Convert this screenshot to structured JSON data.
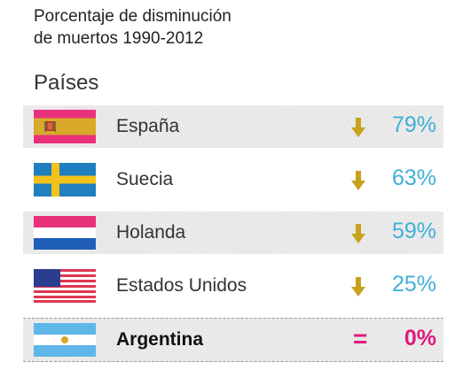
{
  "header": {
    "title_line1": "Porcentaje de disminución",
    "title_line2": "de muertos 1990-2012",
    "column_label": "Países"
  },
  "colors": {
    "decrease_value": "#3fb0d8",
    "decrease_arrow": "#c8a21e",
    "highlight": "#e0197d",
    "stripe": "#e4e4e4"
  },
  "rows": [
    {
      "country": "España",
      "value": "79%",
      "indicator": "down-arrow",
      "flag": "spain-flag-icon"
    },
    {
      "country": "Suecia",
      "value": "63%",
      "indicator": "down-arrow",
      "flag": "sweden-flag-icon"
    },
    {
      "country": "Holanda",
      "value": "59%",
      "indicator": "down-arrow",
      "flag": "netherlands-flag-icon"
    },
    {
      "country": "Estados Unidos",
      "value": "25%",
      "indicator": "down-arrow",
      "flag": "usa-flag-icon"
    },
    {
      "country": "Argentina",
      "value": "0%",
      "indicator": "=",
      "flag": "argentina-flag-icon"
    }
  ],
  "chart_data": {
    "type": "table",
    "title": "Porcentaje de disminución de muertos 1990-2012",
    "columns": [
      "Países",
      "Porcentaje de disminución"
    ],
    "categories": [
      "España",
      "Suecia",
      "Holanda",
      "Estados Unidos",
      "Argentina"
    ],
    "values": [
      79,
      63,
      59,
      25,
      0
    ],
    "unit": "%"
  }
}
